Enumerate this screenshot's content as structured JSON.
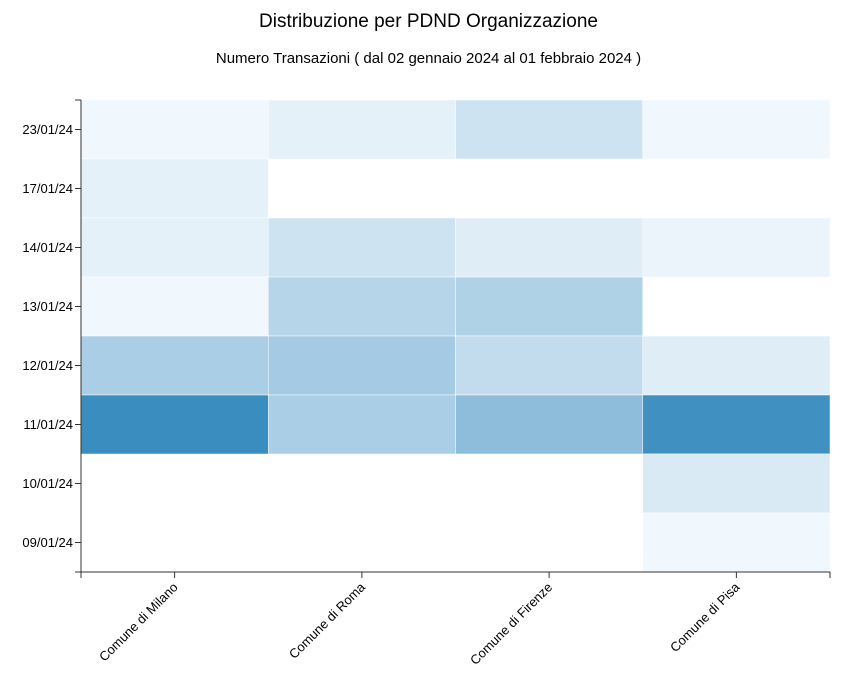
{
  "chart_data": {
    "type": "heatmap",
    "title": "Distribuzione per PDND Organizzazione",
    "subtitle": "Numero Transazioni ( dal 02 gennaio 2024 al 01 febbraio 2024 )",
    "x_categories": [
      "Comune di Milano",
      "Comune di Roma",
      "Comune di Firenze",
      "Comune di Pisa"
    ],
    "y_categories": [
      "23/01/24",
      "17/01/24",
      "14/01/24",
      "13/01/24",
      "12/01/24",
      "11/01/24",
      "10/01/24",
      "09/01/24"
    ],
    "values": [
      [
        1,
        3,
        7,
        1
      ],
      [
        3,
        null,
        null,
        null
      ],
      [
        3,
        7,
        4,
        2
      ],
      [
        1,
        11,
        12,
        null
      ],
      [
        13,
        14,
        9,
        4
      ],
      [
        32,
        13,
        18,
        31
      ],
      [
        null,
        null,
        null,
        5
      ],
      [
        null,
        null,
        null,
        1
      ]
    ],
    "color_scale": {
      "low": "#f7fbff",
      "high": "#3a8dbf",
      "min": 0,
      "max": 32
    }
  }
}
